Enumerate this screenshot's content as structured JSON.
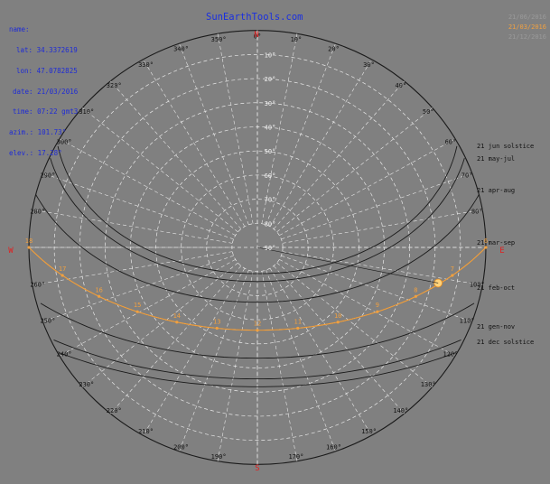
{
  "header": {
    "site_title": "SunEarthTools.com",
    "info_lines": [
      "name: ",
      "lat: 34.3372619",
      "lon: 47.0782825",
      "date: 21/03/2016",
      "time: 07:22 gmt3",
      "azim.: 101.73°",
      "elev.: 17.28°"
    ]
  },
  "legend": [
    {
      "label": "21/06/2016",
      "color": "#9a9a9a"
    },
    {
      "label": "21/03/2016",
      "color": "#f0a040"
    },
    {
      "label": "21/12/2016",
      "color": "#9a9a9a"
    }
  ],
  "compass": {
    "north": "N",
    "south": "S",
    "east": "E",
    "west": "W"
  },
  "colors": {
    "background": "#808080",
    "grid": "#e8e8e8",
    "curve": "#1a1a1a",
    "sun_path": "#f0a040",
    "title": "#1a2fe0",
    "compass": "#e02020"
  },
  "azimuth_labels": [
    {
      "az": 0,
      "text": "0°"
    },
    {
      "az": 10,
      "text": "10°"
    },
    {
      "az": 20,
      "text": "20°"
    },
    {
      "az": 30,
      "text": "30°"
    },
    {
      "az": 40,
      "text": "40°"
    },
    {
      "az": 50,
      "text": "50°"
    },
    {
      "az": 60,
      "text": "60°"
    },
    {
      "az": 70,
      "text": "70°"
    },
    {
      "az": 80,
      "text": "80°"
    },
    {
      "az": 100,
      "text": "100°"
    },
    {
      "az": 110,
      "text": "110°"
    },
    {
      "az": 120,
      "text": "120°"
    },
    {
      "az": 130,
      "text": "130°"
    },
    {
      "az": 140,
      "text": "140°"
    },
    {
      "az": 150,
      "text": "150°"
    },
    {
      "az": 160,
      "text": "160°"
    },
    {
      "az": 170,
      "text": "170°"
    },
    {
      "az": 190,
      "text": "190°"
    },
    {
      "az": 200,
      "text": "200°"
    },
    {
      "az": 210,
      "text": "210°"
    },
    {
      "az": 220,
      "text": "220°"
    },
    {
      "az": 230,
      "text": "230°"
    },
    {
      "az": 240,
      "text": "240°"
    },
    {
      "az": 250,
      "text": "250°"
    },
    {
      "az": 260,
      "text": "260°"
    },
    {
      "az": 280,
      "text": "280°"
    },
    {
      "az": 290,
      "text": "290°"
    },
    {
      "az": 300,
      "text": "300°"
    },
    {
      "az": 310,
      "text": "310°"
    },
    {
      "az": 320,
      "text": "320°"
    },
    {
      "az": 330,
      "text": "330°"
    },
    {
      "az": 340,
      "text": "340°"
    },
    {
      "az": 350,
      "text": "350°"
    }
  ],
  "elevation_labels": [
    "10°",
    "20°",
    "30°",
    "40°",
    "50°",
    "60°",
    "70°",
    "80°",
    "90°"
  ],
  "date_curve_labels": [
    "21 jun  solstice",
    "21 may-jul",
    "21 apr-aug",
    "21 mar-sep",
    "21 feb-oct",
    "21 gen-nov",
    "21 dec  solstice"
  ],
  "hour_labels": [
    "4",
    "5",
    "6",
    "7",
    "8",
    "9",
    "10",
    "11",
    "12",
    "13",
    "14",
    "15",
    "16",
    "17",
    "18"
  ],
  "sun_position": {
    "azimuth": 101.73,
    "elevation": 17.28
  }
}
